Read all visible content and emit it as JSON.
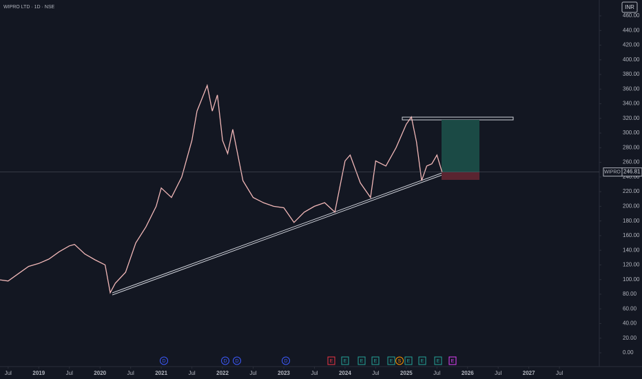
{
  "chart_data": {
    "type": "line",
    "title": "WIPRO LTD · 1D · NSE",
    "currency": "INR",
    "symbol": "WIPRO",
    "series": [
      {
        "name": "WIPRO",
        "color": "#f2b8b8",
        "x": [
          "2018-05",
          "2018-07",
          "2018-09",
          "2018-11",
          "2019-01",
          "2019-03",
          "2019-05",
          "2019-07",
          "2019-08",
          "2019-10",
          "2019-12",
          "2020-02",
          "2020-03",
          "2020-04",
          "2020-06",
          "2020-08",
          "2020-10",
          "2020-12",
          "2021-01",
          "2021-03",
          "2021-05",
          "2021-07",
          "2021-08",
          "2021-10",
          "2021-11",
          "2021-12",
          "2022-01",
          "2022-02",
          "2022-03",
          "2022-05",
          "2022-07",
          "2022-09",
          "2022-11",
          "2023-01",
          "2023-03",
          "2023-05",
          "2023-07",
          "2023-09",
          "2023-11",
          "2024-01",
          "2024-02",
          "2024-04",
          "2024-06",
          "2024-07",
          "2024-09",
          "2024-11",
          "2025-01",
          "2025-02",
          "2025-03",
          "2025-04",
          "2025-05",
          "2025-06",
          "2025-07",
          "2025-08"
        ],
        "values": [
          100,
          98,
          108,
          118,
          122,
          128,
          138,
          146,
          148,
          135,
          127,
          120,
          82,
          95,
          110,
          150,
          172,
          200,
          225,
          212,
          240,
          290,
          330,
          365,
          330,
          352,
          290,
          272,
          305,
          235,
          212,
          205,
          200,
          198,
          178,
          192,
          200,
          205,
          192,
          262,
          270,
          232,
          212,
          262,
          255,
          280,
          312,
          322,
          288,
          235,
          255,
          258,
          270,
          246.81
        ],
        "value_labels": [
          null,
          null,
          null,
          null,
          null,
          null,
          null,
          null,
          null,
          null,
          null,
          null,
          null,
          null,
          null,
          null,
          null,
          null,
          null,
          null,
          null,
          null,
          null,
          null,
          null,
          null,
          null,
          null,
          null,
          null,
          null,
          null,
          null,
          null,
          null,
          null,
          null,
          null,
          null,
          null,
          null,
          null,
          null,
          null,
          null,
          null,
          null,
          null,
          null,
          null,
          null,
          null,
          null,
          "246.81"
        ]
      }
    ],
    "xlim": [
      "2018-05",
      "2028-02"
    ],
    "xticks": [
      {
        "value": "2018-07",
        "label": "Jul"
      },
      {
        "value": "2019-01",
        "label": "2019"
      },
      {
        "value": "2019-07",
        "label": "Jul"
      },
      {
        "value": "2020-01",
        "label": "2020"
      },
      {
        "value": "2020-07",
        "label": "Jul"
      },
      {
        "value": "2021-01",
        "label": "2021"
      },
      {
        "value": "2021-07",
        "label": "Jul"
      },
      {
        "value": "2022-01",
        "label": "2022"
      },
      {
        "value": "2022-07",
        "label": "Jul"
      },
      {
        "value": "2023-01",
        "label": "2023"
      },
      {
        "value": "2023-07",
        "label": "Jul"
      },
      {
        "value": "2024-01",
        "label": "2024"
      },
      {
        "value": "2024-07",
        "label": "Jul"
      },
      {
        "value": "2025-01",
        "label": "2025"
      },
      {
        "value": "2025-07",
        "label": "Jul"
      },
      {
        "value": "2026-01",
        "label": "2026"
      },
      {
        "value": "2026-07",
        "label": "Jul"
      },
      {
        "value": "2027-01",
        "label": "2027"
      },
      {
        "value": "2027-07",
        "label": "Jul"
      }
    ],
    "ylim": [
      0,
      460
    ],
    "yticks": [
      {
        "value": 0,
        "label": "0.00"
      },
      {
        "value": 20,
        "label": "20.00"
      },
      {
        "value": 40,
        "label": "40.00"
      },
      {
        "value": 60,
        "label": "60.00"
      },
      {
        "value": 80,
        "label": "80.00"
      },
      {
        "value": 100,
        "label": "100.00"
      },
      {
        "value": 120,
        "label": "120.00"
      },
      {
        "value": 140,
        "label": "140.00"
      },
      {
        "value": 160,
        "label": "160.00"
      },
      {
        "value": 180,
        "label": "180.00"
      },
      {
        "value": 200,
        "label": "200.00"
      },
      {
        "value": 220,
        "label": "220.00"
      },
      {
        "value": 240,
        "label": "240.00"
      },
      {
        "value": 260,
        "label": "260.00"
      },
      {
        "value": 280,
        "label": "280.00"
      },
      {
        "value": 300,
        "label": "300.00"
      },
      {
        "value": 320,
        "label": "320.00"
      },
      {
        "value": 340,
        "label": "340.00"
      },
      {
        "value": 360,
        "label": "360.00"
      },
      {
        "value": 380,
        "label": "380.00"
      },
      {
        "value": 400,
        "label": "400.00"
      },
      {
        "value": 420,
        "label": "420.00"
      },
      {
        "value": 440,
        "label": "440.00"
      },
      {
        "value": 460,
        "label": "460.00"
      }
    ],
    "events": [
      "D",
      "D",
      "D",
      "D",
      "E",
      "E",
      "E",
      "E",
      "E",
      "S",
      "E",
      "E",
      "E",
      "E"
    ]
  }
}
